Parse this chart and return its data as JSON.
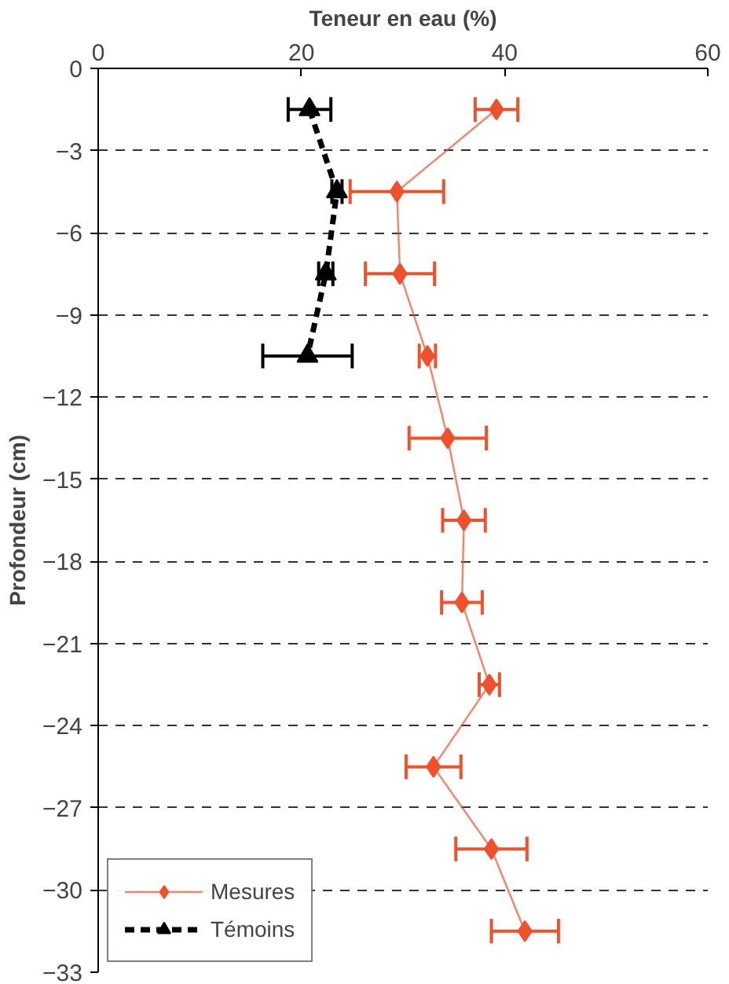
{
  "chart_data": {
    "type": "line",
    "xlabel": "Teneur en eau (%)",
    "ylabel": "Profondeur (cm)",
    "xlim": [
      0,
      60
    ],
    "xticks": [
      0,
      20,
      40,
      60
    ],
    "ylim": [
      -33,
      0
    ],
    "yticks": [
      0,
      -3,
      -6,
      -9,
      -12,
      -15,
      -18,
      -21,
      -24,
      -27,
      -30,
      -33
    ],
    "grid": "y",
    "legend": "bottom left",
    "series": [
      {
        "name": "Mesures",
        "color": "#f0502a",
        "marker": "diamond",
        "line_style": "solid",
        "x": [
          39.2,
          29.4,
          29.7,
          32.4,
          34.4,
          36.0,
          35.8,
          38.5,
          33.0,
          38.7,
          42.0
        ],
        "values": [
          -1.5,
          -4.5,
          -7.5,
          -10.5,
          -13.5,
          -16.5,
          -19.5,
          -22.5,
          -25.5,
          -28.5,
          -31.5
        ],
        "xerrors": [
          2.1,
          4.6,
          3.4,
          0.8,
          3.8,
          2.1,
          2.0,
          1.0,
          2.7,
          3.5,
          3.3
        ]
      },
      {
        "name": "Témoins",
        "color": "#000000",
        "marker": "triangle",
        "line_style": "dashed",
        "x": [
          20.8,
          23.5,
          22.4,
          20.6
        ],
        "values": [
          -1.5,
          -4.5,
          -7.5,
          -10.5
        ],
        "xerrors": [
          2.1,
          0.5,
          0.7,
          4.4
        ]
      }
    ]
  }
}
